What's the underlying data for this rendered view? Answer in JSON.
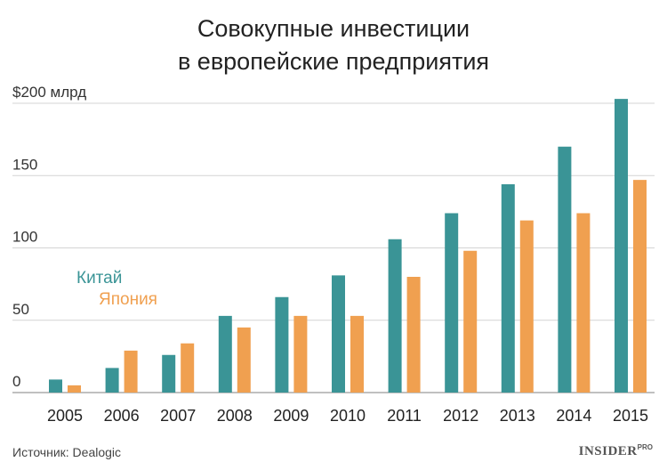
{
  "chart_data": {
    "type": "bar",
    "title_lines": [
      "Совокупные инвестиции",
      "в европейские предприятия"
    ],
    "categories": [
      "2005",
      "2006",
      "2007",
      "2008",
      "2009",
      "2010",
      "2011",
      "2012",
      "2013",
      "2014",
      "2015"
    ],
    "series": [
      {
        "name": "Китай",
        "color": "#3a9496",
        "values": [
          9,
          17,
          26,
          53,
          66,
          81,
          106,
          124,
          144,
          170,
          203
        ]
      },
      {
        "name": "Япония",
        "color": "#f0a050",
        "values": [
          5,
          29,
          34,
          45,
          53,
          53,
          80,
          98,
          119,
          124,
          147
        ]
      }
    ],
    "y_ticks": [
      0,
      50,
      100,
      150,
      200
    ],
    "y_tick_labels": [
      "0",
      "50",
      "100",
      "150",
      "$200 млрд"
    ],
    "ylim": [
      0,
      200
    ],
    "grid": true,
    "legend_placement": "left, inside plot"
  },
  "footer": {
    "source": "Источник: Dealogic",
    "brand": "INSIDER",
    "brand_sup": "PRO"
  }
}
